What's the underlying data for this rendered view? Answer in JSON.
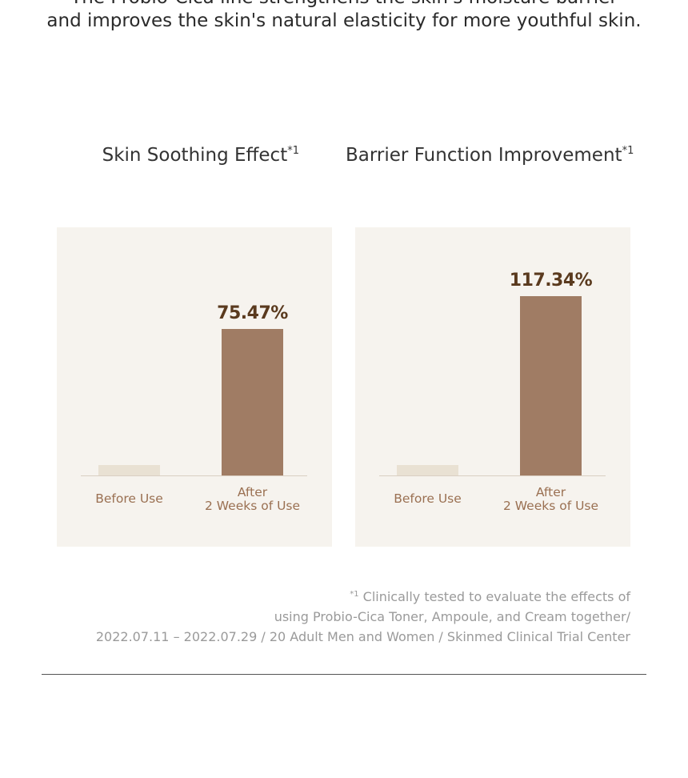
{
  "header": {
    "lines": [
      "The Probio-Cica line strengthens the skin's moisture barrier",
      "and improves the skin's natural elasticity for more youthful skin."
    ]
  },
  "chart_data": [
    {
      "type": "bar",
      "title": "Skin Soothing Effect",
      "title_note": "*1",
      "categories": [
        "Before Use",
        "After\n2 Weeks of Use"
      ],
      "values": [
        5.4,
        75.47
      ],
      "value_labels": [
        null,
        "75.47%"
      ],
      "colors": [
        "#e9e1d3",
        "#a07c64"
      ],
      "ylim": [
        0,
        121
      ]
    },
    {
      "type": "bar",
      "title": "Barrier Function Improvement",
      "title_note": "*1",
      "categories": [
        "Before Use",
        "After\n2 Weeks of Use"
      ],
      "values": [
        6.8,
        117.34
      ],
      "value_labels": [
        null,
        "117.34%"
      ],
      "colors": [
        "#e9e1d3",
        "#a07c64"
      ],
      "ylim": [
        0,
        154
      ]
    }
  ],
  "footnote": {
    "mark": "*1",
    "lines": [
      "Clinically tested to evaluate the effects of",
      "using Probio-Cica Toner, Ampoule, and Cream together/",
      "2022.07.11 – 2022.07.29 / 20 Adult Men and Women / Skinmed Clinical Trial Center"
    ]
  }
}
